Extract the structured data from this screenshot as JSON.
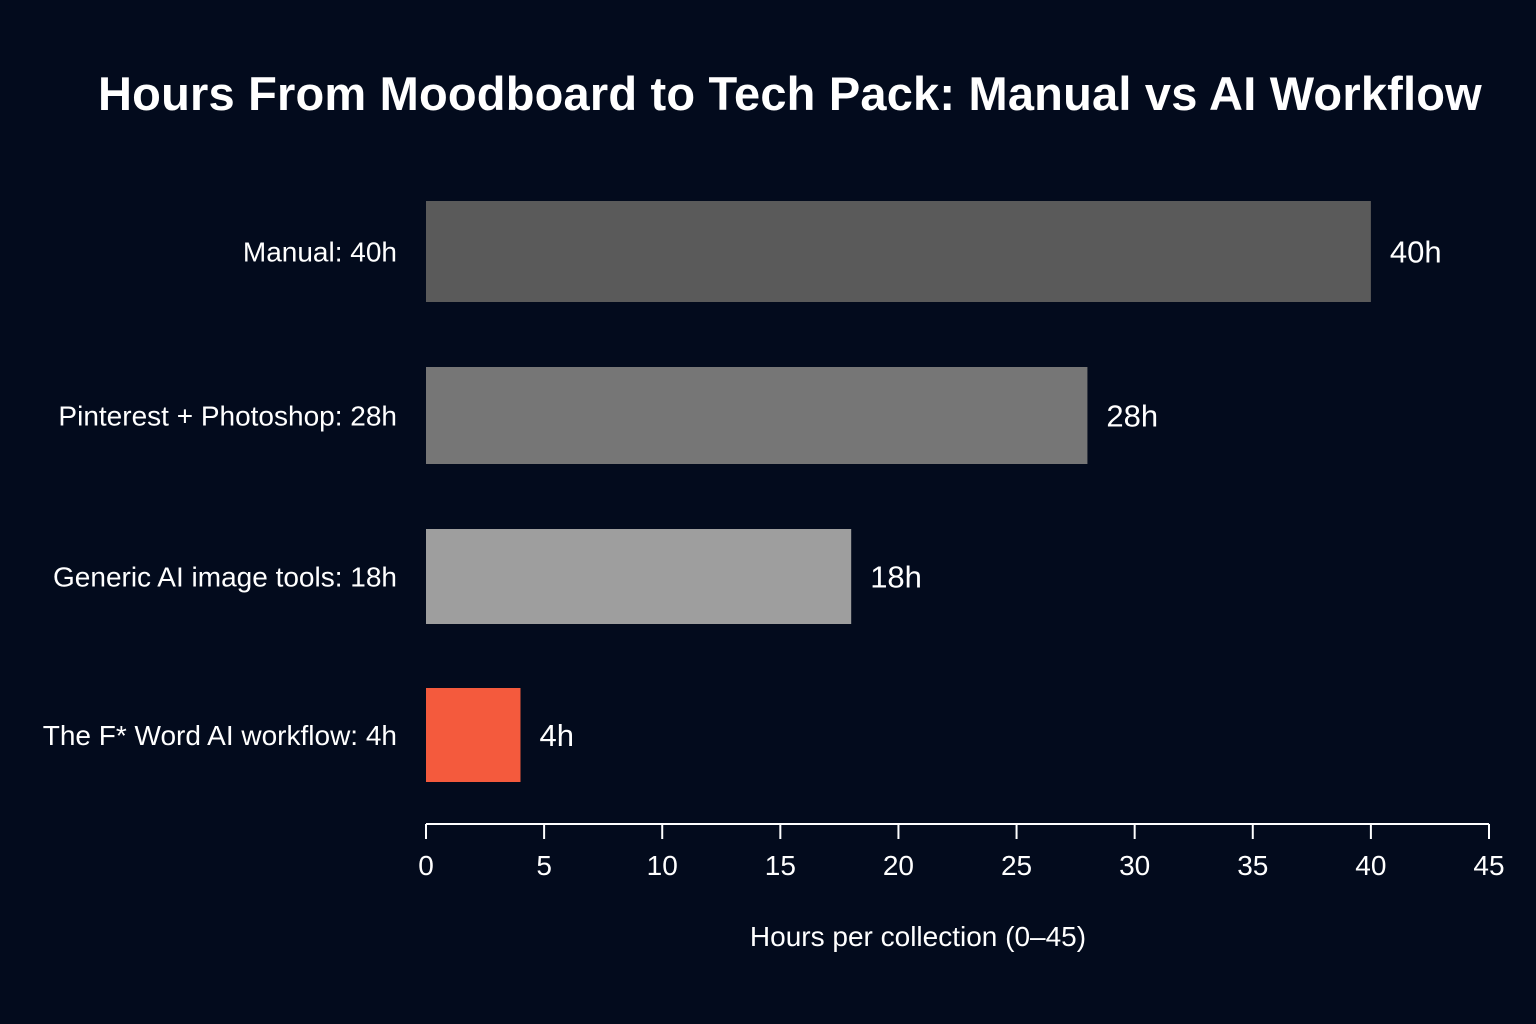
{
  "chart_data": {
    "type": "bar",
    "orientation": "horizontal",
    "title": "Hours From Moodboard to Tech Pack: Manual vs AI Workflow",
    "xlabel": "Hours per collection (0–45)",
    "ylabel": "",
    "xlim": [
      0,
      45
    ],
    "xticks": [
      0,
      5,
      10,
      15,
      20,
      25,
      30,
      35,
      40,
      45
    ],
    "categories": [
      "Manual: 40h",
      "Pinterest + Photoshop: 28h",
      "Generic AI image tools: 18h",
      "The F* Word AI workflow: 4h"
    ],
    "values": [
      40,
      28,
      18,
      4
    ],
    "value_labels": [
      "40h",
      "28h",
      "18h",
      "4h"
    ],
    "colors": [
      "#5a5a5a",
      "#767676",
      "#9e9e9e",
      "#f45a3d"
    ],
    "grid": false,
    "legend": "none"
  },
  "colors": {
    "background": "#030b1d",
    "text": "#ffffff",
    "axis": "#ffffff",
    "highlight": "#f45a3d"
  }
}
